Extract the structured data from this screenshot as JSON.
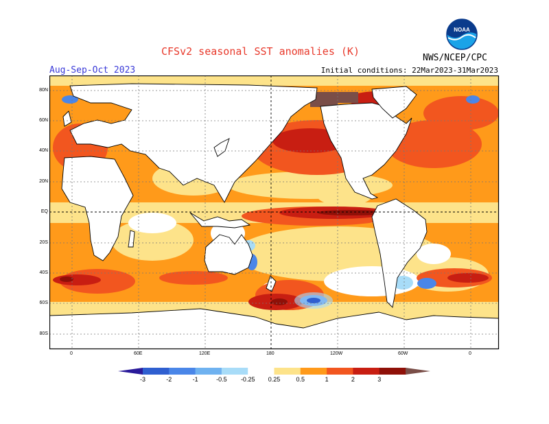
{
  "header": {
    "title": "CFSv2 seasonal SST anomalies (K)",
    "season": "Aug-Sep-Oct 2023",
    "initial_conditions": "Initial conditions: 22Mar2023-31Mar2023",
    "agency": "NWS/NCEP/CPC",
    "logo_text": "NOAA"
  },
  "map": {
    "lat_labels": [
      "80N",
      "60N",
      "40N",
      "20N",
      "EQ",
      "20S",
      "40S",
      "60S",
      "80S"
    ],
    "lon_labels": [
      "0",
      "60E",
      "120E",
      "180",
      "120W",
      "60W",
      "0"
    ]
  },
  "legend": {
    "levels": [
      "-3",
      "-2",
      "-1",
      "-0.5",
      "-0.25",
      "0.25",
      "0.5",
      "1",
      "2",
      "3"
    ],
    "colors": [
      "#2a1a9a",
      "#2f5fd0",
      "#4a86e8",
      "#6fb2f0",
      "#a8dcf8",
      "#ffffff",
      "#fde38a",
      "#ff9a1a",
      "#f2561f",
      "#c81e12",
      "#8f1008",
      "#7a4e48"
    ]
  }
}
